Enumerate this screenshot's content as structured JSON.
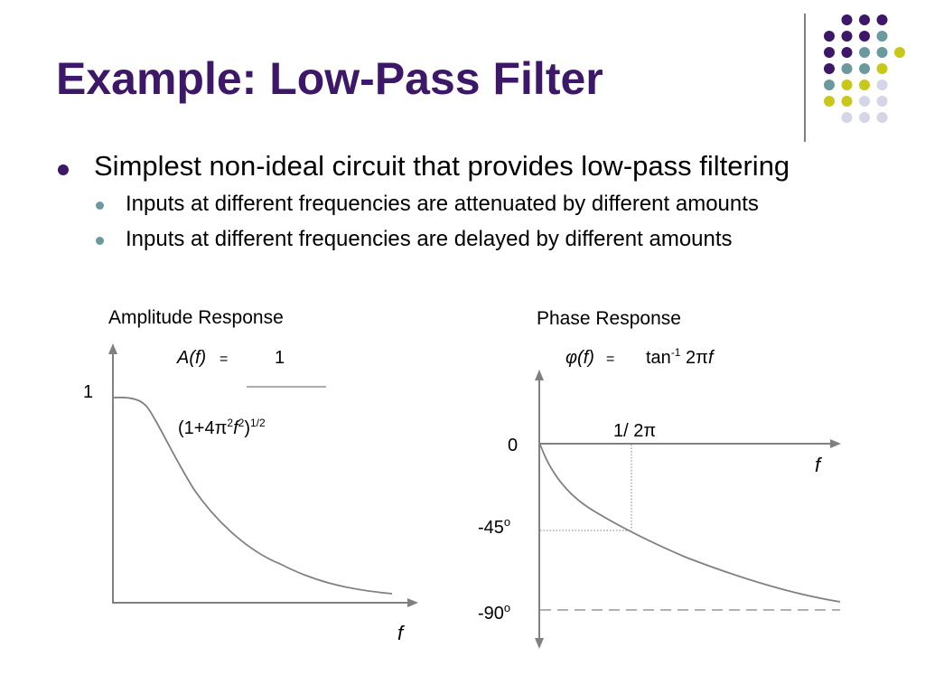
{
  "slide": {
    "title": "Example:  Low-Pass Filter",
    "bullets": [
      {
        "text": "Simplest non-ideal circuit that provides low-pass filtering",
        "sub": [
          "Inputs at different frequencies are attenuated by different amounts",
          "Inputs at different frequencies are delayed by different amounts"
        ]
      }
    ]
  },
  "decor": {
    "dot_colors": {
      "purple": "#3d1768",
      "teal": "#6b9a9e",
      "yellow": "#c8c81a",
      "lavender": "#d5d5e8"
    }
  },
  "amplitude_graph": {
    "label": "Amplitude Response",
    "formula_lhs": "A(f)",
    "formula_eq": "=",
    "formula_num": "1",
    "formula_den_base": "(1+4π",
    "formula_den_sup1": "2",
    "formula_den_f": "f",
    "formula_den_sup2": "2",
    "formula_den_close": ")",
    "formula_den_sup3": "1/2",
    "y_tick": "1",
    "x_label": "f"
  },
  "phase_graph": {
    "label": "Phase Response",
    "formula_lhs": "φ(f)",
    "formula_eq": "=",
    "formula_rhs": "tan",
    "formula_sup": "-1",
    "formula_arg": " 2π",
    "formula_f": "f",
    "x_marker": "1/ 2π",
    "y_tick_0": "0",
    "y_tick_45": "-45",
    "y_tick_90": "-90",
    "degree": "o",
    "x_label": "f"
  }
}
